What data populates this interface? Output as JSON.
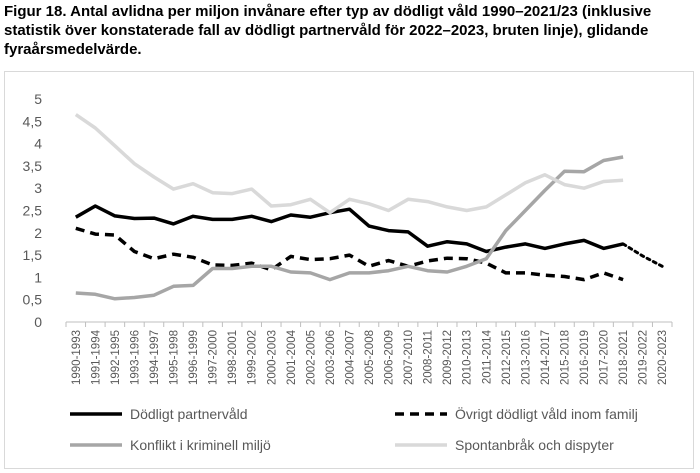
{
  "title": "Figur 18. Antal avlidna per miljon invånare efter typ av dödligt våld 1990–2021/23 (inklusive statistik över konstaterade fall av dödligt partnervåld för 2022–2023, bruten linje), glidande fyraårsmedelvärde.",
  "chart_data": {
    "type": "line",
    "title": "Figur 18. Antal avlidna per miljon invånare efter typ av dödligt våld 1990–2021/23 (inklusive statistik över konstaterade fall av dödligt partnervåld för 2022–2023, bruten linje), glidande fyraårsmedelvärde.",
    "xlabel": "",
    "ylabel": "",
    "ylim": [
      0,
      5
    ],
    "yticks": [
      "0",
      "0,5",
      "1",
      "1,5",
      "2",
      "2,5",
      "3",
      "3,5",
      "4",
      "4,5",
      "5"
    ],
    "grid": false,
    "legend_position": "bottom",
    "categories": [
      "1990-1993",
      "1991-1994",
      "1992-1995",
      "1993-1996",
      "1994-1997",
      "1995-1998",
      "1996-1999",
      "1997-2000",
      "1998-2001",
      "1999-2002",
      "2000-2003",
      "2001-2004",
      "2002-2005",
      "2003-2006",
      "2004-2007",
      "2005-2008",
      "2006-2009",
      "2007-2010",
      "2008-2011",
      "2009-2012",
      "2010-2013",
      "2011-2014",
      "2012-2015",
      "2013-2016",
      "2014-2017",
      "2015-2018",
      "2016-2019",
      "2017-2020",
      "2018-2021",
      "2019-2022",
      "2020-2023"
    ],
    "series": [
      {
        "name": "Dödligt partnervåld",
        "color": "#000000",
        "style": "solid",
        "values": [
          2.35,
          2.6,
          2.38,
          2.32,
          2.33,
          2.2,
          2.37,
          2.3,
          2.3,
          2.37,
          2.25,
          2.4,
          2.35,
          2.45,
          2.53,
          2.15,
          2.05,
          2.02,
          1.7,
          1.8,
          1.75,
          1.58,
          1.68,
          1.75,
          1.65,
          1.75,
          1.83,
          1.65,
          1.75,
          null,
          null
        ]
      },
      {
        "name": "Övrigt dödligt våld inom familj",
        "color": "#000000",
        "style": "dashed",
        "values": [
          2.1,
          1.97,
          1.95,
          1.58,
          1.42,
          1.52,
          1.45,
          1.28,
          1.27,
          1.32,
          1.17,
          1.47,
          1.4,
          1.42,
          1.5,
          1.25,
          1.38,
          1.25,
          1.37,
          1.43,
          1.42,
          1.32,
          1.1,
          1.1,
          1.05,
          1.02,
          0.95,
          1.1,
          0.95,
          null,
          null
        ]
      },
      {
        "name": "Dödligt partnervåld (2022–2023)",
        "color": "#000000",
        "style": "dotted",
        "legend": false,
        "values": [
          null,
          null,
          null,
          null,
          null,
          null,
          null,
          null,
          null,
          null,
          null,
          null,
          null,
          null,
          null,
          null,
          null,
          null,
          null,
          null,
          null,
          null,
          null,
          null,
          null,
          null,
          null,
          null,
          1.75,
          1.48,
          1.25
        ]
      },
      {
        "name": "Konflikt i kriminell miljö",
        "color": "#a6a6a6",
        "style": "solid",
        "values": [
          0.65,
          0.62,
          0.52,
          0.55,
          0.6,
          0.8,
          0.82,
          1.2,
          1.2,
          1.25,
          1.25,
          1.12,
          1.1,
          0.95,
          1.1,
          1.1,
          1.15,
          1.25,
          1.15,
          1.12,
          1.25,
          1.42,
          2.05,
          2.5,
          2.95,
          3.38,
          3.37,
          3.62,
          3.7,
          null,
          null
        ]
      },
      {
        "name": "Spontanbråk och dispyter",
        "color": "#d9d9d9",
        "style": "solid",
        "values": [
          4.65,
          4.35,
          3.95,
          3.55,
          3.25,
          2.98,
          3.1,
          2.9,
          2.88,
          2.98,
          2.6,
          2.63,
          2.75,
          2.45,
          2.75,
          2.65,
          2.5,
          2.75,
          2.7,
          2.58,
          2.5,
          2.58,
          2.85,
          3.12,
          3.3,
          3.08,
          3.0,
          3.15,
          3.18,
          null,
          null
        ]
      }
    ]
  },
  "legend": [
    {
      "label": "Dödligt partnervåld",
      "color": "#000000",
      "style": "solid"
    },
    {
      "label": "Övrigt dödligt våld inom familj",
      "color": "#000000",
      "style": "dashed"
    },
    {
      "label": "Konflikt i kriminell miljö",
      "color": "#a6a6a6",
      "style": "solid"
    },
    {
      "label": "Spontanbråk och dispyter",
      "color": "#d9d9d9",
      "style": "solid"
    }
  ]
}
